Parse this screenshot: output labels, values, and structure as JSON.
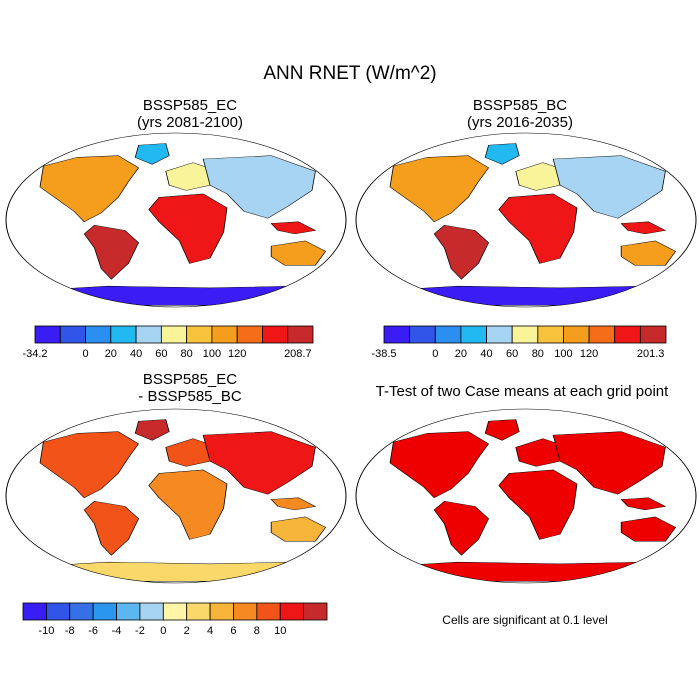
{
  "figure": {
    "title": "ANN RNET (W/m^2)",
    "significance_note": "Cells are significant at 0.1 level"
  },
  "panels": [
    {
      "title_line1": "BSSP585_EC",
      "title_line2": "(yrs 2081-2100)",
      "colorbar": {
        "colors": [
          "#3a1cf5",
          "#3055e8",
          "#2a8ff0",
          "#22b8f2",
          "#a6d4f2",
          "#f9f39a",
          "#f7c23c",
          "#f59d1c",
          "#f56d18",
          "#ee1616",
          "#c72a2a"
        ],
        "labels": [
          "-34.2",
          "0",
          "20",
          "40",
          "60",
          "80",
          "100",
          "120",
          "208.7"
        ]
      }
    },
    {
      "title_line1": "BSSP585_BC",
      "title_line2": "(yrs 2016-2035)",
      "colorbar": {
        "colors": [
          "#3a1cf5",
          "#3055e8",
          "#2a8ff0",
          "#22b8f2",
          "#a6d4f2",
          "#f9f39a",
          "#f7c23c",
          "#f59d1c",
          "#f56d18",
          "#ee1616",
          "#c72a2a"
        ],
        "labels": [
          "-38.5",
          "0",
          "20",
          "40",
          "60",
          "80",
          "100",
          "120",
          "201.3"
        ]
      }
    },
    {
      "title_line1": "BSSP585_EC",
      "title_line2": "- BSSP585_BC",
      "colorbar": {
        "colors": [
          "#3a1cf5",
          "#3055e8",
          "#3570e6",
          "#2a96ee",
          "#5cb6f0",
          "#a6d4f2",
          "#fff6a8",
          "#fbd86a",
          "#f7b43a",
          "#f58a22",
          "#f25318",
          "#ee1616",
          "#c72a2a"
        ],
        "labels": [
          "-10",
          "-8",
          "-6",
          "-4",
          "-2",
          "0",
          "2",
          "4",
          "6",
          "8",
          "10"
        ]
      }
    },
    {
      "title_line1": "T-Test of two Case means at each grid point",
      "title_line2": ""
    }
  ]
}
